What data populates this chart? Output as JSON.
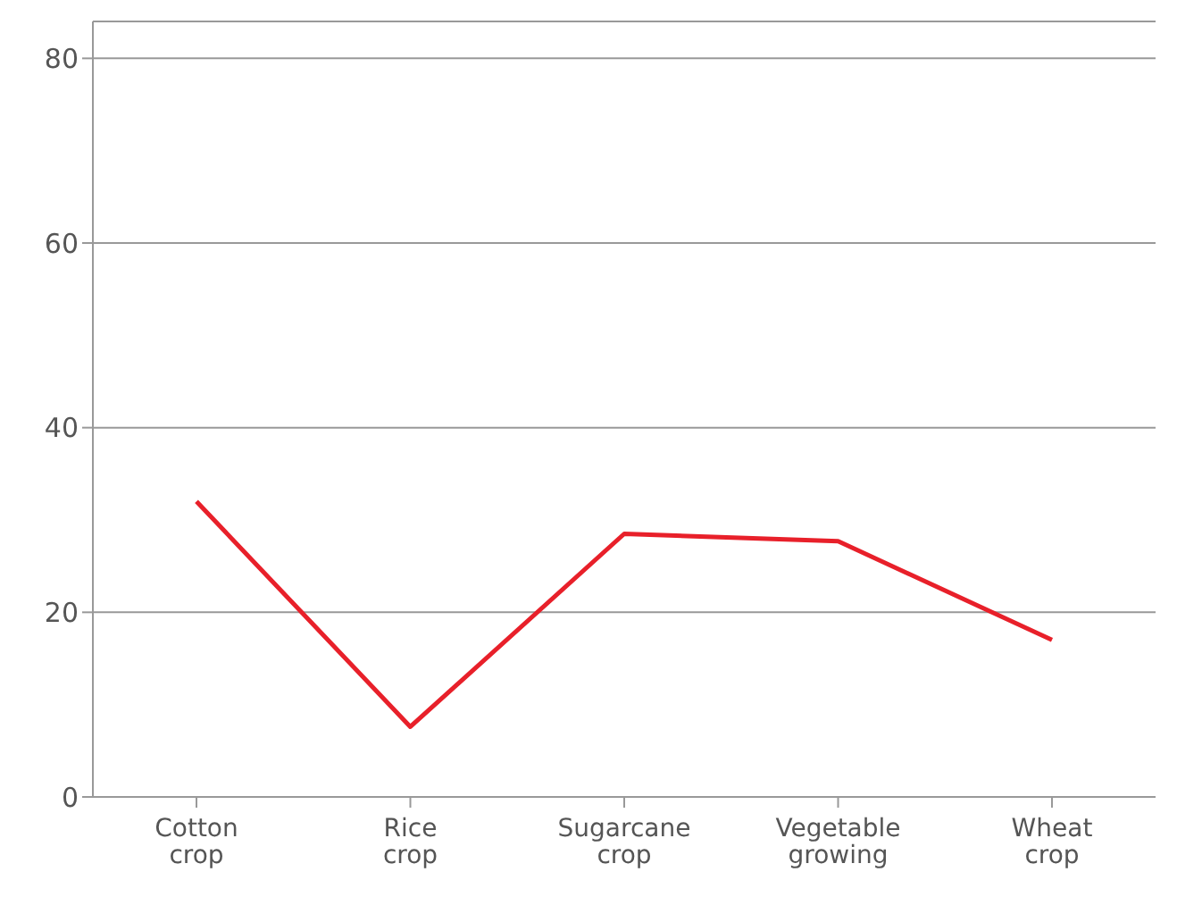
{
  "chart_data": {
    "type": "line",
    "categories": [
      "Cotton crop",
      "Rice crop",
      "Sugarcane crop",
      "Vegetable growing",
      "Wheat crop"
    ],
    "series": [
      {
        "color": "#e8202a",
        "values": [
          32.0,
          7.6,
          28.5,
          27.7,
          17.0
        ]
      }
    ],
    "ylim": [
      0,
      84
    ],
    "yticks": [
      0,
      20,
      40,
      60,
      80
    ],
    "grid": "y",
    "legend": false,
    "marker": "none",
    "line_style": "solid"
  }
}
